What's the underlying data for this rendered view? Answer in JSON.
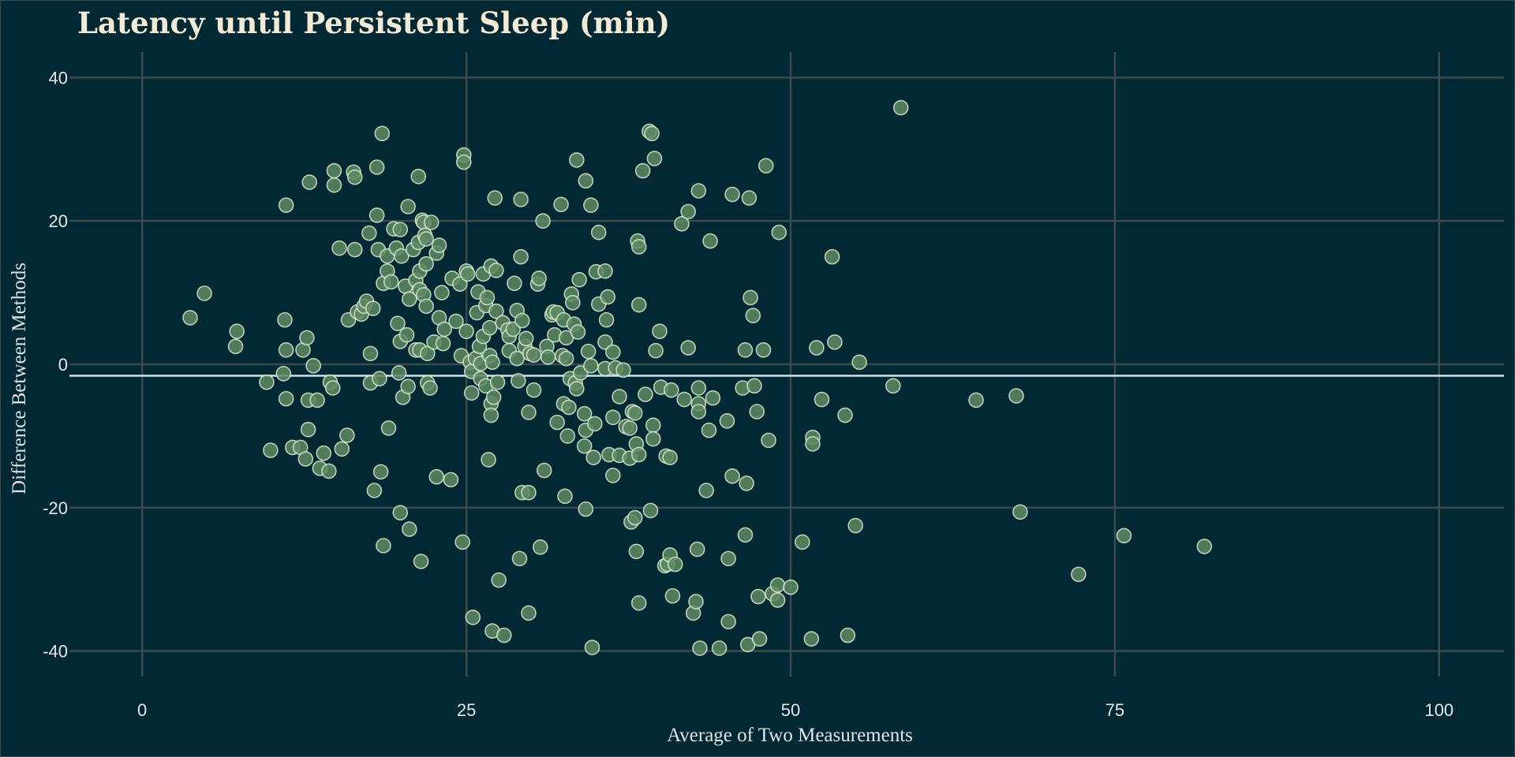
{
  "chart_data": {
    "type": "scatter",
    "title": "Latency until Persistent Sleep (min)",
    "xlabel": "Average of Two Measurements",
    "ylabel": "Difference Between Methods",
    "xlim": [
      -5,
      105
    ],
    "ylim": [
      -44,
      44
    ],
    "xticks": [
      0,
      25,
      50,
      75,
      100
    ],
    "yticks": [
      -40,
      -20,
      0,
      20,
      40
    ],
    "x_tick_labels": [
      "0",
      "25",
      "50",
      "75",
      "100"
    ],
    "y_tick_labels": [
      "-40",
      "-20",
      "0",
      "20",
      "40"
    ],
    "grid": true,
    "mean_difference": -1.6,
    "colors": {
      "background": "#022933",
      "grid": "#3b4b4f",
      "point_fill": "#5e8a63",
      "point_stroke": "#e2eed8",
      "reference_line": "#cfe3ea",
      "title": "#f3ead6"
    },
    "points": [
      [
        3.7,
        6.5
      ],
      [
        4.8,
        9.9
      ],
      [
        7.3,
        4.6
      ],
      [
        7.2,
        2.5
      ],
      [
        9.6,
        -2.5
      ],
      [
        9.9,
        -12.0
      ],
      [
        10.9,
        -1.3
      ],
      [
        11.0,
        6.2
      ],
      [
        11.1,
        22.2
      ],
      [
        11.1,
        2.0
      ],
      [
        11.1,
        -4.8
      ],
      [
        11.6,
        -11.6
      ],
      [
        12.2,
        -11.6
      ],
      [
        12.4,
        2.0
      ],
      [
        12.6,
        -13.2
      ],
      [
        12.7,
        3.7
      ],
      [
        12.8,
        -9.1
      ],
      [
        12.8,
        -5.0
      ],
      [
        12.9,
        25.4
      ],
      [
        13.2,
        -0.2
      ],
      [
        13.5,
        -5.0
      ],
      [
        13.7,
        -14.5
      ],
      [
        14.0,
        -12.4
      ],
      [
        14.4,
        -14.9
      ],
      [
        14.5,
        -2.5
      ],
      [
        14.7,
        -3.3
      ],
      [
        14.8,
        25.0
      ],
      [
        14.8,
        27.0
      ],
      [
        15.2,
        16.2
      ],
      [
        15.4,
        -11.8
      ],
      [
        15.8,
        -9.9
      ],
      [
        15.9,
        6.2
      ],
      [
        16.3,
        26.8
      ],
      [
        16.4,
        26.1
      ],
      [
        16.4,
        16.0
      ],
      [
        16.6,
        7.3
      ],
      [
        16.9,
        7.0
      ],
      [
        17.1,
        8.1
      ],
      [
        17.3,
        8.8
      ],
      [
        17.5,
        18.3
      ],
      [
        17.6,
        1.5
      ],
      [
        17.6,
        -2.6
      ],
      [
        17.8,
        7.8
      ],
      [
        17.9,
        -17.6
      ],
      [
        18.1,
        27.5
      ],
      [
        18.1,
        20.8
      ],
      [
        18.2,
        16.0
      ],
      [
        18.3,
        -2.0
      ],
      [
        18.4,
        -15.0
      ],
      [
        18.5,
        32.2
      ],
      [
        18.6,
        11.3
      ],
      [
        18.6,
        -25.3
      ],
      [
        18.9,
        15.1
      ],
      [
        18.9,
        13.0
      ],
      [
        19.0,
        -8.9
      ],
      [
        19.2,
        11.5
      ],
      [
        19.4,
        18.9
      ],
      [
        19.6,
        16.2
      ],
      [
        19.7,
        5.7
      ],
      [
        19.8,
        -1.2
      ],
      [
        19.9,
        18.8
      ],
      [
        19.9,
        3.2
      ],
      [
        19.9,
        -20.7
      ],
      [
        20.0,
        15.1
      ],
      [
        20.1,
        -4.6
      ],
      [
        20.3,
        10.9
      ],
      [
        20.4,
        4.1
      ],
      [
        20.5,
        22.0
      ],
      [
        20.5,
        -3.1
      ],
      [
        20.6,
        9.1
      ],
      [
        20.6,
        -23.0
      ],
      [
        20.9,
        16.0
      ],
      [
        21.1,
        11.7
      ],
      [
        21.1,
        2.0
      ],
      [
        21.3,
        26.2
      ],
      [
        21.3,
        17.0
      ],
      [
        21.4,
        13.0
      ],
      [
        21.4,
        10.4
      ],
      [
        21.4,
        2.0
      ],
      [
        21.5,
        -27.5
      ],
      [
        21.6,
        20.1
      ],
      [
        21.7,
        19.8
      ],
      [
        21.7,
        9.7
      ],
      [
        21.8,
        18.0
      ],
      [
        21.9,
        17.5
      ],
      [
        21.9,
        14.0
      ],
      [
        21.9,
        8.1
      ],
      [
        22.0,
        1.5
      ],
      [
        22.0,
        -2.6
      ],
      [
        22.2,
        -3.3
      ],
      [
        22.3,
        19.8
      ],
      [
        22.5,
        3.1
      ],
      [
        22.7,
        15.5
      ],
      [
        22.7,
        -15.7
      ],
      [
        22.9,
        16.6
      ],
      [
        22.9,
        6.5
      ],
      [
        23.1,
        10.0
      ],
      [
        23.2,
        2.9
      ],
      [
        23.3,
        4.9
      ],
      [
        23.8,
        -16.1
      ],
      [
        23.9,
        12.0
      ],
      [
        24.2,
        6.0
      ],
      [
        24.5,
        11.2
      ],
      [
        24.6,
        1.2
      ],
      [
        24.7,
        -24.8
      ],
      [
        24.8,
        29.2
      ],
      [
        24.8,
        28.2
      ],
      [
        25.0,
        4.6
      ],
      [
        25.0,
        13.0
      ],
      [
        25.1,
        12.6
      ],
      [
        25.3,
        0.3
      ],
      [
        25.4,
        -4.0
      ],
      [
        25.4,
        -1.0
      ],
      [
        25.5,
        -35.3
      ],
      [
        25.7,
        0.8
      ],
      [
        25.8,
        7.2
      ],
      [
        25.9,
        10.1
      ],
      [
        26.0,
        2.5
      ],
      [
        26.1,
        0.1
      ],
      [
        26.1,
        -2.0
      ],
      [
        26.3,
        12.6
      ],
      [
        26.3,
        3.9
      ],
      [
        26.5,
        8.2
      ],
      [
        26.5,
        -3.0
      ],
      [
        26.6,
        9.3
      ],
      [
        26.7,
        -13.3
      ],
      [
        26.8,
        5.1
      ],
      [
        26.8,
        1.2
      ],
      [
        26.9,
        13.7
      ],
      [
        26.9,
        -5.5
      ],
      [
        26.9,
        -7.1
      ],
      [
        27.0,
        0.3
      ],
      [
        27.0,
        -37.2
      ],
      [
        27.1,
        -4.6
      ],
      [
        27.2,
        23.2
      ],
      [
        27.3,
        13.1
      ],
      [
        27.3,
        7.4
      ],
      [
        27.4,
        -2.5
      ],
      [
        27.5,
        -30.1
      ],
      [
        27.8,
        5.8
      ],
      [
        27.9,
        -37.8
      ],
      [
        28.2,
        4.8
      ],
      [
        28.3,
        3.9
      ],
      [
        28.3,
        1.9
      ],
      [
        28.6,
        4.9
      ],
      [
        28.7,
        11.3
      ],
      [
        28.9,
        7.5
      ],
      [
        28.9,
        0.8
      ],
      [
        29.0,
        -2.3
      ],
      [
        29.1,
        -27.1
      ],
      [
        29.2,
        15.0
      ],
      [
        29.2,
        23.0
      ],
      [
        29.3,
        6.1
      ],
      [
        29.3,
        -17.9
      ],
      [
        29.5,
        2.5
      ],
      [
        29.6,
        3.6
      ],
      [
        29.8,
        -17.9
      ],
      [
        29.8,
        -6.7
      ],
      [
        29.8,
        -34.7
      ],
      [
        29.9,
        1.5
      ],
      [
        30.2,
        1.3
      ],
      [
        30.2,
        -3.6
      ],
      [
        30.5,
        11.2
      ],
      [
        30.6,
        12.0
      ],
      [
        30.7,
        -25.5
      ],
      [
        30.9,
        20.0
      ],
      [
        31.0,
        -14.8
      ],
      [
        31.2,
        2.5
      ],
      [
        31.3,
        1.0
      ],
      [
        31.6,
        6.9
      ],
      [
        31.7,
        7.3
      ],
      [
        31.8,
        4.1
      ],
      [
        32.0,
        7.2
      ],
      [
        32.0,
        -8.1
      ],
      [
        32.3,
        22.3
      ],
      [
        32.4,
        1.2
      ],
      [
        32.5,
        6.2
      ],
      [
        32.5,
        -5.5
      ],
      [
        32.6,
        -18.4
      ],
      [
        32.7,
        3.7
      ],
      [
        32.7,
        0.8
      ],
      [
        32.8,
        -10.0
      ],
      [
        32.9,
        -6.0
      ],
      [
        33.0,
        -2.0
      ],
      [
        33.1,
        9.8
      ],
      [
        33.2,
        8.6
      ],
      [
        33.3,
        5.6
      ],
      [
        33.4,
        -2.6
      ],
      [
        33.5,
        -3.4
      ],
      [
        33.5,
        28.5
      ],
      [
        33.6,
        4.5
      ],
      [
        33.7,
        11.8
      ],
      [
        33.8,
        -1.2
      ],
      [
        34.1,
        -6.9
      ],
      [
        34.1,
        -11.4
      ],
      [
        34.2,
        25.6
      ],
      [
        34.2,
        -9.2
      ],
      [
        34.2,
        -20.2
      ],
      [
        34.4,
        1.8
      ],
      [
        34.6,
        22.2
      ],
      [
        34.6,
        -0.2
      ],
      [
        34.7,
        -39.5
      ],
      [
        34.8,
        -13.0
      ],
      [
        34.9,
        -8.3
      ],
      [
        35.0,
        12.9
      ],
      [
        35.2,
        18.4
      ],
      [
        35.2,
        8.4
      ],
      [
        35.7,
        13.0
      ],
      [
        35.7,
        -0.6
      ],
      [
        35.7,
        3.1
      ],
      [
        35.8,
        6.2
      ],
      [
        35.9,
        9.4
      ],
      [
        36.0,
        -12.6
      ],
      [
        36.3,
        -7.4
      ],
      [
        36.3,
        -15.5
      ],
      [
        36.3,
        1.7
      ],
      [
        36.5,
        -0.5
      ],
      [
        36.8,
        -12.7
      ],
      [
        36.8,
        -4.5
      ],
      [
        37.1,
        -0.8
      ],
      [
        37.3,
        -8.7
      ],
      [
        37.6,
        -8.9
      ],
      [
        37.6,
        -13.1
      ],
      [
        37.7,
        -22.0
      ],
      [
        37.8,
        -6.6
      ],
      [
        38.0,
        -21.4
      ],
      [
        38.0,
        -6.8
      ],
      [
        38.1,
        -11.1
      ],
      [
        38.1,
        -26.1
      ],
      [
        38.2,
        17.2
      ],
      [
        38.3,
        16.4
      ],
      [
        38.3,
        8.3
      ],
      [
        38.3,
        -12.6
      ],
      [
        38.3,
        -33.3
      ],
      [
        38.6,
        27.0
      ],
      [
        38.8,
        -4.2
      ],
      [
        39.1,
        32.5
      ],
      [
        39.2,
        -20.4
      ],
      [
        39.3,
        32.2
      ],
      [
        39.4,
        -8.5
      ],
      [
        39.4,
        -10.4
      ],
      [
        39.5,
        28.7
      ],
      [
        39.6,
        1.9
      ],
      [
        39.9,
        4.6
      ],
      [
        40.0,
        -3.2
      ],
      [
        40.3,
        -28.1
      ],
      [
        40.4,
        -12.8
      ],
      [
        40.5,
        -27.9
      ],
      [
        40.7,
        -26.6
      ],
      [
        40.7,
        -13.0
      ],
      [
        40.8,
        -3.6
      ],
      [
        40.9,
        -32.3
      ],
      [
        41.1,
        -27.9
      ],
      [
        41.6,
        19.6
      ],
      [
        41.8,
        -4.9
      ],
      [
        42.1,
        21.3
      ],
      [
        42.1,
        2.3
      ],
      [
        42.5,
        -34.7
      ],
      [
        42.7,
        -33.1
      ],
      [
        42.8,
        -25.8
      ],
      [
        42.9,
        24.2
      ],
      [
        42.9,
        -3.3
      ],
      [
        42.9,
        -5.5
      ],
      [
        42.9,
        -6.6
      ],
      [
        43.0,
        -39.6
      ],
      [
        43.5,
        -17.6
      ],
      [
        43.7,
        -9.2
      ],
      [
        43.8,
        17.2
      ],
      [
        44.0,
        -4.7
      ],
      [
        44.5,
        -39.6
      ],
      [
        45.1,
        -7.9
      ],
      [
        45.2,
        -35.9
      ],
      [
        45.2,
        -27.1
      ],
      [
        45.5,
        -15.6
      ],
      [
        45.5,
        23.7
      ],
      [
        46.3,
        -3.3
      ],
      [
        46.5,
        2.0
      ],
      [
        46.5,
        -23.8
      ],
      [
        46.6,
        -16.6
      ],
      [
        46.7,
        -39.1
      ],
      [
        46.8,
        23.2
      ],
      [
        46.9,
        9.3
      ],
      [
        47.1,
        6.8
      ],
      [
        47.2,
        -3.0
      ],
      [
        47.4,
        -6.6
      ],
      [
        47.5,
        -32.4
      ],
      [
        47.6,
        -38.3
      ],
      [
        47.9,
        2.0
      ],
      [
        48.1,
        27.7
      ],
      [
        48.3,
        -10.6
      ],
      [
        48.6,
        -32.0
      ],
      [
        49.0,
        -30.8
      ],
      [
        49.0,
        -32.9
      ],
      [
        49.1,
        18.4
      ],
      [
        50.0,
        -31.1
      ],
      [
        50.9,
        -24.8
      ],
      [
        51.6,
        -38.3
      ],
      [
        51.7,
        -10.2
      ],
      [
        51.7,
        -11.1
      ],
      [
        52.0,
        2.3
      ],
      [
        52.4,
        -4.9
      ],
      [
        53.2,
        15.0
      ],
      [
        53.4,
        3.1
      ],
      [
        54.2,
        -7.1
      ],
      [
        54.4,
        -37.8
      ],
      [
        55.0,
        -22.5
      ],
      [
        55.3,
        0.3
      ],
      [
        57.9,
        -3.0
      ],
      [
        58.5,
        35.8
      ],
      [
        64.3,
        -5.0
      ],
      [
        67.4,
        -4.4
      ],
      [
        67.7,
        -20.6
      ],
      [
        72.2,
        -29.3
      ],
      [
        75.7,
        -23.9
      ],
      [
        81.9,
        -25.4
      ]
    ]
  }
}
